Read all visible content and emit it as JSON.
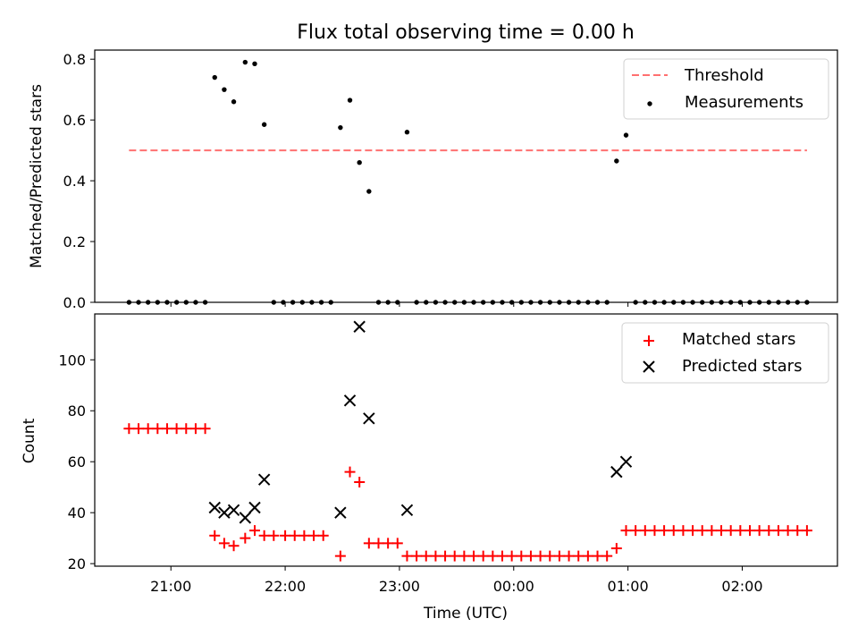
{
  "title": "Flux total observing time = 0.00 h",
  "chart_data": [
    {
      "type": "scatter",
      "ylabel": "Matched/Predicted stars",
      "xlim": [
        "20:20",
        "02:50"
      ],
      "ylim": [
        0,
        0.83
      ],
      "yticks": [
        0.0,
        0.2,
        0.4,
        0.6,
        0.8
      ],
      "legend_position": "upper right",
      "threshold": {
        "name": "Threshold",
        "value": 0.5,
        "x_range": [
          "20:38",
          "02:34"
        ],
        "color": "#ff7070"
      },
      "measurements": {
        "name": "Measurements",
        "color": "#000000",
        "points": [
          [
            "20:38",
            0
          ],
          [
            "20:43",
            0
          ],
          [
            "20:48",
            0
          ],
          [
            "20:53",
            0
          ],
          [
            "20:58",
            0
          ],
          [
            "21:03",
            0
          ],
          [
            "21:08",
            0
          ],
          [
            "21:13",
            0
          ],
          [
            "21:18",
            0
          ],
          [
            "21:23",
            0.74
          ],
          [
            "21:28",
            0.7
          ],
          [
            "21:33",
            0.66
          ],
          [
            "21:39",
            0.79
          ],
          [
            "21:44",
            0.785
          ],
          [
            "21:49",
            0.585
          ],
          [
            "21:54",
            0
          ],
          [
            "21:59",
            0
          ],
          [
            "22:04",
            0
          ],
          [
            "22:09",
            0
          ],
          [
            "22:14",
            0
          ],
          [
            "22:19",
            0
          ],
          [
            "22:24",
            0
          ],
          [
            "22:29",
            0.575
          ],
          [
            "22:34",
            0.665
          ],
          [
            "22:39",
            0.46
          ],
          [
            "22:44",
            0.365
          ],
          [
            "22:49",
            0
          ],
          [
            "22:54",
            0
          ],
          [
            "22:59",
            0
          ],
          [
            "23:04",
            0.56
          ],
          [
            "23:09",
            0
          ],
          [
            "23:14",
            0
          ],
          [
            "23:19",
            0
          ],
          [
            "23:24",
            0
          ],
          [
            "23:29",
            0
          ],
          [
            "23:34",
            0
          ],
          [
            "23:39",
            0
          ],
          [
            "23:44",
            0
          ],
          [
            "23:49",
            0
          ],
          [
            "23:54",
            0
          ],
          [
            "23:59",
            0
          ],
          [
            "00:04",
            0
          ],
          [
            "00:09",
            0
          ],
          [
            "00:14",
            0
          ],
          [
            "00:19",
            0
          ],
          [
            "00:24",
            0
          ],
          [
            "00:29",
            0
          ],
          [
            "00:34",
            0
          ],
          [
            "00:39",
            0
          ],
          [
            "00:44",
            0
          ],
          [
            "00:49",
            0
          ],
          [
            "00:54",
            0.465
          ],
          [
            "00:59",
            0.55
          ],
          [
            "01:04",
            0
          ],
          [
            "01:09",
            0
          ],
          [
            "01:14",
            0
          ],
          [
            "01:19",
            0
          ],
          [
            "01:24",
            0
          ],
          [
            "01:29",
            0
          ],
          [
            "01:34",
            0
          ],
          [
            "01:39",
            0
          ],
          [
            "01:44",
            0
          ],
          [
            "01:49",
            0
          ],
          [
            "01:54",
            0
          ],
          [
            "01:59",
            0
          ],
          [
            "02:04",
            0
          ],
          [
            "02:09",
            0
          ],
          [
            "02:14",
            0
          ],
          [
            "02:19",
            0
          ],
          [
            "02:24",
            0
          ],
          [
            "02:29",
            0
          ],
          [
            "02:34",
            0
          ]
        ]
      }
    },
    {
      "type": "scatter",
      "xlabel": "Time (UTC)",
      "ylabel": "Count",
      "xlim": [
        "20:20",
        "02:50"
      ],
      "ylim": [
        19,
        118
      ],
      "yticks": [
        20,
        40,
        60,
        80,
        100
      ],
      "xticks": [
        "21:00",
        "22:00",
        "23:00",
        "00:00",
        "01:00",
        "02:00"
      ],
      "legend_position": "upper right",
      "series": [
        {
          "name": "Matched stars",
          "marker": "+",
          "color": "#ff0000",
          "points": [
            [
              "20:38",
              73
            ],
            [
              "20:43",
              73
            ],
            [
              "20:48",
              73
            ],
            [
              "20:53",
              73
            ],
            [
              "20:58",
              73
            ],
            [
              "21:03",
              73
            ],
            [
              "21:08",
              73
            ],
            [
              "21:13",
              73
            ],
            [
              "21:18",
              73
            ],
            [
              "21:23",
              31
            ],
            [
              "21:28",
              28
            ],
            [
              "21:33",
              27
            ],
            [
              "21:39",
              30
            ],
            [
              "21:44",
              33
            ],
            [
              "21:49",
              31
            ],
            [
              "21:54",
              31
            ],
            [
              "22:00",
              31
            ],
            [
              "22:05",
              31
            ],
            [
              "22:10",
              31
            ],
            [
              "22:15",
              31
            ],
            [
              "22:20",
              31
            ],
            [
              "22:29",
              23
            ],
            [
              "22:34",
              56
            ],
            [
              "22:39",
              52
            ],
            [
              "22:44",
              28
            ],
            [
              "22:49",
              28
            ],
            [
              "22:54",
              28
            ],
            [
              "22:59",
              28
            ],
            [
              "23:04",
              23
            ],
            [
              "23:09",
              23
            ],
            [
              "23:14",
              23
            ],
            [
              "23:19",
              23
            ],
            [
              "23:24",
              23
            ],
            [
              "23:29",
              23
            ],
            [
              "23:34",
              23
            ],
            [
              "23:39",
              23
            ],
            [
              "23:44",
              23
            ],
            [
              "23:49",
              23
            ],
            [
              "23:54",
              23
            ],
            [
              "23:59",
              23
            ],
            [
              "00:04",
              23
            ],
            [
              "00:09",
              23
            ],
            [
              "00:14",
              23
            ],
            [
              "00:19",
              23
            ],
            [
              "00:24",
              23
            ],
            [
              "00:29",
              23
            ],
            [
              "00:34",
              23
            ],
            [
              "00:39",
              23
            ],
            [
              "00:44",
              23
            ],
            [
              "00:49",
              23
            ],
            [
              "00:54",
              26
            ],
            [
              "00:59",
              33
            ],
            [
              "01:04",
              33
            ],
            [
              "01:09",
              33
            ],
            [
              "01:14",
              33
            ],
            [
              "01:19",
              33
            ],
            [
              "01:24",
              33
            ],
            [
              "01:29",
              33
            ],
            [
              "01:34",
              33
            ],
            [
              "01:39",
              33
            ],
            [
              "01:44",
              33
            ],
            [
              "01:49",
              33
            ],
            [
              "01:54",
              33
            ],
            [
              "01:59",
              33
            ],
            [
              "02:04",
              33
            ],
            [
              "02:09",
              33
            ],
            [
              "02:14",
              33
            ],
            [
              "02:19",
              33
            ],
            [
              "02:24",
              33
            ],
            [
              "02:29",
              33
            ],
            [
              "02:34",
              33
            ]
          ]
        },
        {
          "name": "Predicted stars",
          "marker": "x",
          "color": "#000000",
          "points": [
            [
              "21:23",
              42
            ],
            [
              "21:28",
              40
            ],
            [
              "21:33",
              41
            ],
            [
              "21:39",
              38
            ],
            [
              "21:44",
              42
            ],
            [
              "21:49",
              53
            ],
            [
              "22:29",
              40
            ],
            [
              "22:34",
              84
            ],
            [
              "22:39",
              113
            ],
            [
              "22:44",
              77
            ],
            [
              "23:04",
              41
            ],
            [
              "00:54",
              56
            ],
            [
              "00:59",
              60
            ]
          ]
        }
      ]
    }
  ]
}
